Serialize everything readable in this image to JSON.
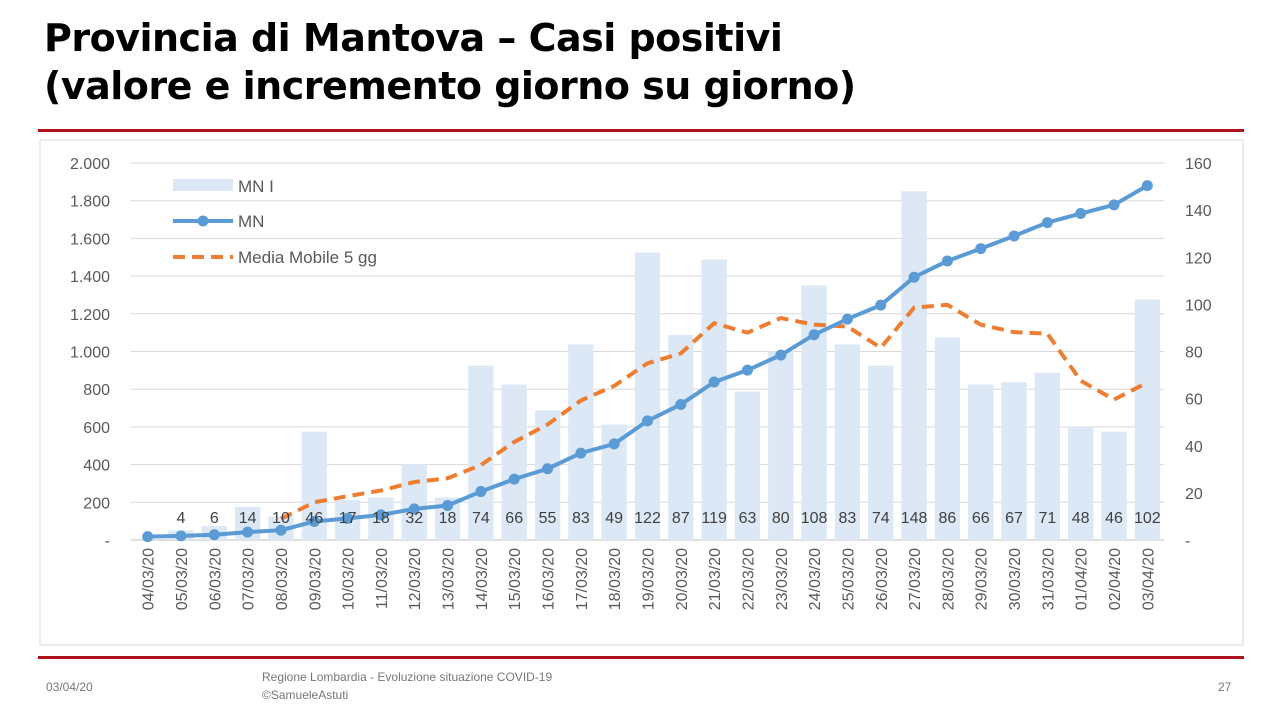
{
  "title_line1": "Provincia di Mantova – Casi positivi",
  "title_line2": "(valore e incremento giorno su giorno)",
  "footer": {
    "date": "03/04/20",
    "source": "Regione Lombardia - Evoluzione situazione COVID-19",
    "author": "©SamueleAstuti",
    "page": "27"
  },
  "colors": {
    "bars": "#dce8f5",
    "line": "#5b9bd5",
    "moving_avg": "#ed7d31",
    "rule": "#b0121b"
  },
  "chart_data": {
    "type": "bar+line",
    "categories": [
      "04/03/20",
      "05/03/20",
      "06/03/20",
      "07/03/20",
      "08/03/20",
      "09/03/20",
      "10/03/20",
      "11/03/20",
      "12/03/20",
      "13/03/20",
      "14/03/20",
      "15/03/20",
      "16/03/20",
      "17/03/20",
      "18/03/20",
      "19/03/20",
      "20/03/20",
      "21/03/20",
      "22/03/20",
      "23/03/20",
      "24/03/20",
      "25/03/20",
      "26/03/20",
      "27/03/20",
      "28/03/20",
      "29/03/20",
      "30/03/20",
      "31/03/20",
      "01/04/20",
      "02/04/20",
      "03/04/20"
    ],
    "left_axis": {
      "range": [
        0,
        2000
      ],
      "ticks": [
        "-",
        "200",
        "400",
        "600",
        "800",
        "1.000",
        "1.200",
        "1.400",
        "1.600",
        "1.800",
        "2.000"
      ]
    },
    "right_axis": {
      "range": [
        0,
        160
      ],
      "ticks": [
        "-",
        "20",
        "40",
        "60",
        "80",
        "100",
        "120",
        "140",
        "160"
      ]
    },
    "grid": true,
    "legend": "top-left",
    "series": [
      {
        "name": "MN I",
        "type": "bar",
        "axis": "right",
        "values": [
          null,
          4,
          6,
          14,
          10,
          46,
          17,
          18,
          32,
          18,
          74,
          66,
          55,
          83,
          49,
          122,
          87,
          119,
          63,
          80,
          108,
          83,
          74,
          148,
          86,
          66,
          67,
          71,
          48,
          46,
          102
        ]
      },
      {
        "name": "MN",
        "type": "line",
        "axis": "left",
        "values": [
          18,
          22,
          28,
          42,
          52,
          98,
          115,
          133,
          165,
          183,
          257,
          323,
          378,
          461,
          510,
          632,
          719,
          838,
          901,
          981,
          1089,
          1172,
          1246,
          1394,
          1480,
          1546,
          1613,
          1684,
          1732,
          1778,
          1880
        ]
      },
      {
        "name": "Media Mobile 5 gg",
        "type": "line-dashed",
        "axis": "right",
        "values": [
          null,
          null,
          null,
          null,
          9,
          16,
          18.6,
          21,
          24.6,
          26.2,
          31.8,
          41.6,
          49,
          59.2,
          65.4,
          75,
          79.2,
          92,
          88,
          94.2,
          91.4,
          90.6,
          81.6,
          98.6,
          99.8,
          91.4,
          88.2,
          87.6,
          67.6,
          59.6,
          66.8
        ]
      }
    ]
  }
}
